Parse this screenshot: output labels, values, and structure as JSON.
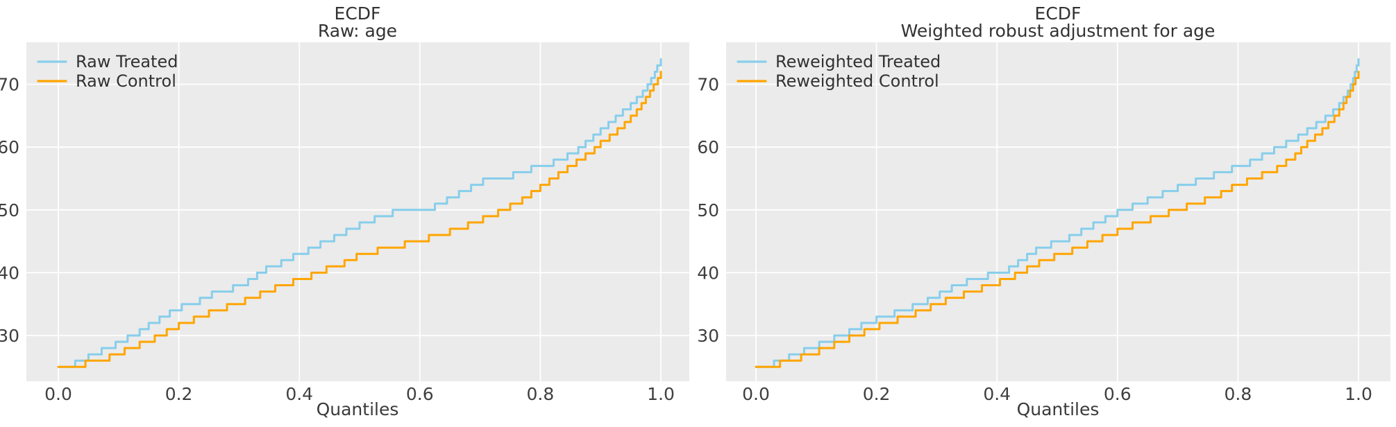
{
  "figure": {
    "background": "#ffffff"
  },
  "style": {
    "plot_bg": "#ebebeb",
    "grid_color": "#ffffff",
    "title_color": "#323232",
    "tick_color": "#3f3f3f",
    "treated_color": "#87ceeb",
    "control_color": "#ffa500"
  },
  "chart_data": [
    {
      "type": "line",
      "step": true,
      "title": "ECDF",
      "subtitle": "Raw: age",
      "xlabel": "Quantiles",
      "ylabel": "",
      "xlim": [
        -0.05,
        1.05
      ],
      "ylim": [
        22.5,
        76.5
      ],
      "x_ticks": [
        0.0,
        0.2,
        0.4,
        0.6,
        0.8,
        1.0
      ],
      "x_tick_labels": [
        "0.0",
        "0.2",
        "0.4",
        "0.6",
        "0.8",
        "1.0"
      ],
      "y_ticks": [
        30,
        40,
        50,
        60,
        70
      ],
      "y_tick_labels": [
        "30",
        "40",
        "50",
        "60",
        "70"
      ],
      "grid": true,
      "legend_position": "upper left",
      "series": [
        {
          "name": "Raw Treated",
          "color": "#87ceeb",
          "points": [
            [
              0,
              25
            ],
            [
              0.028,
              26
            ],
            [
              0.05,
              27
            ],
            [
              0.072,
              28
            ],
            [
              0.095,
              29
            ],
            [
              0.115,
              30
            ],
            [
              0.135,
              31
            ],
            [
              0.15,
              32
            ],
            [
              0.168,
              33
            ],
            [
              0.185,
              34
            ],
            [
              0.205,
              35
            ],
            [
              0.235,
              36
            ],
            [
              0.255,
              37
            ],
            [
              0.29,
              38
            ],
            [
              0.315,
              39
            ],
            [
              0.33,
              40
            ],
            [
              0.345,
              41
            ],
            [
              0.37,
              42
            ],
            [
              0.39,
              43
            ],
            [
              0.415,
              44
            ],
            [
              0.435,
              45
            ],
            [
              0.458,
              46
            ],
            [
              0.478,
              47
            ],
            [
              0.5,
              48
            ],
            [
              0.525,
              49
            ],
            [
              0.555,
              50
            ],
            [
              0.625,
              51
            ],
            [
              0.645,
              52
            ],
            [
              0.665,
              53
            ],
            [
              0.685,
              54
            ],
            [
              0.705,
              55
            ],
            [
              0.755,
              56
            ],
            [
              0.785,
              57
            ],
            [
              0.822,
              58
            ],
            [
              0.845,
              59
            ],
            [
              0.863,
              60
            ],
            [
              0.875,
              61
            ],
            [
              0.888,
              62
            ],
            [
              0.9,
              63
            ],
            [
              0.913,
              64
            ],
            [
              0.925,
              65
            ],
            [
              0.937,
              66
            ],
            [
              0.95,
              67
            ],
            [
              0.96,
              68
            ],
            [
              0.97,
              69
            ],
            [
              0.978,
              70
            ],
            [
              0.984,
              71
            ],
            [
              0.99,
              72
            ],
            [
              0.994,
              73
            ],
            [
              1,
              74
            ]
          ]
        },
        {
          "name": "Raw Control",
          "color": "#ffa500",
          "points": [
            [
              0,
              25
            ],
            [
              0.045,
              26
            ],
            [
              0.085,
              27
            ],
            [
              0.11,
              28
            ],
            [
              0.135,
              29
            ],
            [
              0.16,
              30
            ],
            [
              0.18,
              31
            ],
            [
              0.2,
              32
            ],
            [
              0.225,
              33
            ],
            [
              0.25,
              34
            ],
            [
              0.28,
              35
            ],
            [
              0.31,
              36
            ],
            [
              0.335,
              37
            ],
            [
              0.36,
              38
            ],
            [
              0.39,
              39
            ],
            [
              0.42,
              40
            ],
            [
              0.445,
              41
            ],
            [
              0.475,
              42
            ],
            [
              0.495,
              43
            ],
            [
              0.53,
              44
            ],
            [
              0.575,
              45
            ],
            [
              0.615,
              46
            ],
            [
              0.65,
              47
            ],
            [
              0.68,
              48
            ],
            [
              0.705,
              49
            ],
            [
              0.73,
              50
            ],
            [
              0.75,
              51
            ],
            [
              0.77,
              52
            ],
            [
              0.785,
              53
            ],
            [
              0.8,
              54
            ],
            [
              0.815,
              55
            ],
            [
              0.83,
              56
            ],
            [
              0.845,
              57
            ],
            [
              0.86,
              58
            ],
            [
              0.875,
              59
            ],
            [
              0.89,
              60
            ],
            [
              0.9,
              61
            ],
            [
              0.915,
              62
            ],
            [
              0.928,
              63
            ],
            [
              0.94,
              64
            ],
            [
              0.95,
              65
            ],
            [
              0.96,
              66
            ],
            [
              0.968,
              67
            ],
            [
              0.975,
              68
            ],
            [
              0.982,
              69
            ],
            [
              0.988,
              70
            ],
            [
              0.995,
              71
            ],
            [
              1,
              72
            ]
          ]
        }
      ]
    },
    {
      "type": "line",
      "step": true,
      "title": "ECDF",
      "subtitle": "Weighted robust adjustment for age",
      "xlabel": "Quantiles",
      "ylabel": "",
      "xlim": [
        -0.05,
        1.05
      ],
      "ylim": [
        22.5,
        76.5
      ],
      "x_ticks": [
        0.0,
        0.2,
        0.4,
        0.6,
        0.8,
        1.0
      ],
      "x_tick_labels": [
        "0.0",
        "0.2",
        "0.4",
        "0.6",
        "0.8",
        "1.0"
      ],
      "y_ticks": [
        30,
        40,
        50,
        60,
        70
      ],
      "y_tick_labels": [
        "30",
        "40",
        "50",
        "60",
        "70"
      ],
      "grid": true,
      "legend_position": "upper left",
      "series": [
        {
          "name": "Reweighted Treated",
          "color": "#87ceeb",
          "points": [
            [
              0,
              25
            ],
            [
              0.03,
              26
            ],
            [
              0.055,
              27
            ],
            [
              0.08,
              28
            ],
            [
              0.105,
              29
            ],
            [
              0.13,
              30
            ],
            [
              0.155,
              31
            ],
            [
              0.175,
              32
            ],
            [
              0.2,
              33
            ],
            [
              0.23,
              34
            ],
            [
              0.26,
              35
            ],
            [
              0.285,
              36
            ],
            [
              0.305,
              37
            ],
            [
              0.325,
              38
            ],
            [
              0.35,
              39
            ],
            [
              0.385,
              40
            ],
            [
              0.42,
              41
            ],
            [
              0.435,
              42
            ],
            [
              0.45,
              43
            ],
            [
              0.465,
              44
            ],
            [
              0.49,
              45
            ],
            [
              0.52,
              46
            ],
            [
              0.54,
              47
            ],
            [
              0.56,
              48
            ],
            [
              0.58,
              49
            ],
            [
              0.6,
              50
            ],
            [
              0.625,
              51
            ],
            [
              0.65,
              52
            ],
            [
              0.675,
              53
            ],
            [
              0.7,
              54
            ],
            [
              0.73,
              55
            ],
            [
              0.76,
              56
            ],
            [
              0.79,
              57
            ],
            [
              0.82,
              58
            ],
            [
              0.84,
              59
            ],
            [
              0.86,
              60
            ],
            [
              0.88,
              61
            ],
            [
              0.9,
              62
            ],
            [
              0.915,
              63
            ],
            [
              0.93,
              64
            ],
            [
              0.945,
              65
            ],
            [
              0.958,
              66
            ],
            [
              0.968,
              67
            ],
            [
              0.975,
              68
            ],
            [
              0.982,
              69
            ],
            [
              0.987,
              70
            ],
            [
              0.991,
              71
            ],
            [
              0.994,
              72
            ],
            [
              0.997,
              73
            ],
            [
              1,
              74
            ]
          ]
        },
        {
          "name": "Reweighted Control",
          "color": "#ffa500",
          "points": [
            [
              0,
              25
            ],
            [
              0.04,
              26
            ],
            [
              0.075,
              27
            ],
            [
              0.105,
              28
            ],
            [
              0.13,
              29
            ],
            [
              0.155,
              30
            ],
            [
              0.18,
              31
            ],
            [
              0.205,
              32
            ],
            [
              0.235,
              33
            ],
            [
              0.265,
              34
            ],
            [
              0.29,
              35
            ],
            [
              0.315,
              36
            ],
            [
              0.345,
              37
            ],
            [
              0.375,
              38
            ],
            [
              0.405,
              39
            ],
            [
              0.43,
              40
            ],
            [
              0.45,
              41
            ],
            [
              0.47,
              42
            ],
            [
              0.495,
              43
            ],
            [
              0.525,
              44
            ],
            [
              0.55,
              45
            ],
            [
              0.575,
              46
            ],
            [
              0.6,
              47
            ],
            [
              0.625,
              48
            ],
            [
              0.655,
              49
            ],
            [
              0.685,
              50
            ],
            [
              0.715,
              51
            ],
            [
              0.745,
              52
            ],
            [
              0.772,
              53
            ],
            [
              0.79,
              54
            ],
            [
              0.815,
              55
            ],
            [
              0.84,
              56
            ],
            [
              0.865,
              57
            ],
            [
              0.88,
              58
            ],
            [
              0.895,
              59
            ],
            [
              0.905,
              60
            ],
            [
              0.915,
              61
            ],
            [
              0.928,
              62
            ],
            [
              0.94,
              63
            ],
            [
              0.95,
              64
            ],
            [
              0.96,
              65
            ],
            [
              0.968,
              66
            ],
            [
              0.975,
              67
            ],
            [
              0.98,
              68
            ],
            [
              0.986,
              69
            ],
            [
              0.991,
              70
            ],
            [
              0.995,
              71
            ],
            [
              1,
              72
            ]
          ]
        }
      ]
    }
  ]
}
